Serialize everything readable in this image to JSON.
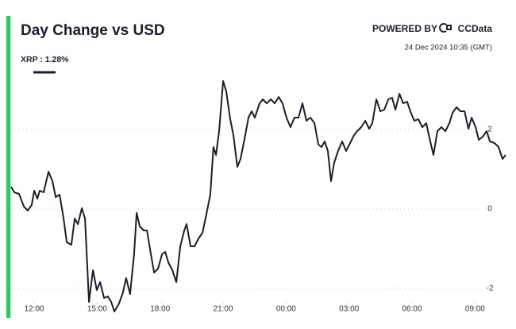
{
  "chart_data": {
    "type": "line",
    "title": "Day Change vs USD",
    "powered_by": "POWERED BY",
    "brand": "CCData",
    "timestamp": "24 Dec 2024 10:35 (GMT)",
    "x": [
      10.9,
      11.05,
      11.28,
      11.51,
      11.69,
      11.88,
      12.0,
      12.15,
      12.26,
      12.45,
      12.68,
      12.87,
      13.02,
      13.21,
      13.4,
      13.55,
      13.77,
      13.93,
      14.08,
      14.27,
      14.42,
      14.61,
      14.8,
      14.98,
      15.14,
      15.33,
      15.51,
      15.67,
      15.82,
      16.04,
      16.23,
      16.38,
      16.57,
      16.76,
      16.88,
      17.03,
      17.22,
      17.37,
      17.56,
      17.71,
      17.9,
      18.09,
      18.24,
      18.39,
      18.58,
      18.77,
      18.96,
      19.15,
      19.26,
      19.45,
      19.64,
      19.83,
      20.02,
      20.2,
      20.39,
      20.54,
      20.66,
      20.81,
      21.0,
      21.15,
      21.34,
      21.49,
      21.68,
      21.83,
      22.02,
      22.21,
      22.36,
      22.51,
      22.74,
      22.89,
      23.08,
      23.27,
      23.46,
      23.65,
      23.83,
      24.02,
      24.21,
      24.4,
      24.59,
      24.78,
      24.97,
      25.16,
      25.35,
      25.54,
      25.69,
      25.84,
      25.99,
      26.14,
      26.29,
      26.48,
      26.67,
      26.86,
      27.05,
      27.24,
      27.39,
      27.58,
      27.77,
      27.96,
      28.11,
      28.3,
      28.49,
      28.68,
      28.87,
      29.05,
      29.21,
      29.4,
      29.58,
      29.77,
      29.92,
      30.11,
      30.3,
      30.49,
      30.68,
      30.87,
      31.02,
      31.21,
      31.4,
      31.59,
      31.78,
      31.93,
      32.12,
      32.31,
      32.5,
      32.69,
      32.84,
      33.03,
      33.18,
      33.37,
      33.56,
      33.71,
      33.93,
      34.12,
      34.31,
      34.46
    ],
    "series": [
      {
        "name": "XRP : 1.28%",
        "color": "#1b1f2a",
        "values": [
          0.56,
          0.42,
          0.38,
          0.06,
          -0.04,
          0.1,
          0.46,
          0.26,
          0.46,
          0.42,
          0.94,
          0.7,
          0.3,
          0.36,
          -0.24,
          -0.84,
          -0.9,
          -0.24,
          -0.38,
          0.02,
          -0.24,
          -2.34,
          -1.54,
          -2.04,
          -1.84,
          -2.24,
          -2.2,
          -2.34,
          -2.58,
          -2.38,
          -2.1,
          -1.74,
          -2.14,
          -1.14,
          -0.1,
          -0.44,
          -0.54,
          -0.54,
          -1.14,
          -1.6,
          -1.5,
          -1.14,
          -1.08,
          -1.34,
          -1.54,
          -1.84,
          -0.94,
          -0.54,
          -0.38,
          -0.94,
          -0.94,
          -0.74,
          -0.6,
          -0.14,
          0.36,
          1.56,
          1.36,
          1.96,
          3.22,
          2.96,
          2.26,
          1.86,
          1.06,
          1.26,
          1.76,
          2.3,
          2.46,
          2.3,
          2.66,
          2.76,
          2.66,
          2.76,
          2.66,
          2.82,
          2.66,
          2.3,
          2.06,
          2.3,
          2.3,
          2.66,
          2.22,
          2.3,
          2.16,
          1.62,
          1.56,
          1.7,
          1.46,
          0.7,
          1.16,
          1.46,
          1.7,
          1.46,
          1.66,
          1.86,
          1.96,
          2.06,
          2.22,
          2.02,
          2.16,
          2.76,
          2.46,
          2.5,
          2.76,
          2.8,
          2.5,
          2.9,
          2.66,
          2.7,
          2.46,
          2.22,
          2.26,
          2.06,
          2.16,
          1.7,
          1.36,
          1.96,
          2.06,
          1.96,
          2.16,
          2.42,
          2.56,
          2.46,
          2.46,
          2.02,
          2.3,
          2.06,
          1.74,
          1.82,
          1.96,
          1.7,
          1.66,
          1.56,
          1.26,
          1.36
        ]
      }
    ],
    "xlim": [
      10.9,
      34.5
    ],
    "xticks": [
      {
        "value": 12,
        "label": "12:00"
      },
      {
        "value": 15,
        "label": "15:00"
      },
      {
        "value": 18,
        "label": "18:00"
      },
      {
        "value": 21,
        "label": "21:00"
      },
      {
        "value": 24,
        "label": "00:00"
      },
      {
        "value": 27,
        "label": "03:00"
      },
      {
        "value": 30,
        "label": "06:00"
      },
      {
        "value": 33,
        "label": "09:00"
      }
    ],
    "ylim": [
      -2.64,
      3.36
    ],
    "yticks": [
      2,
      0,
      -2
    ],
    "grid": true
  }
}
